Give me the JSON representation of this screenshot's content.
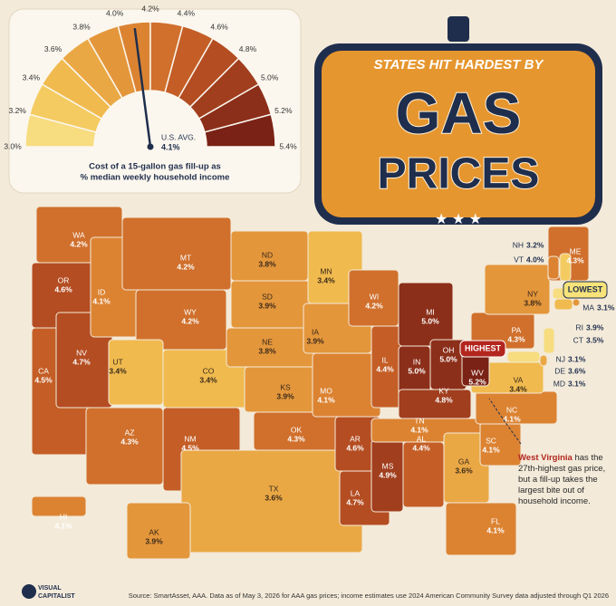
{
  "gauge": {
    "ticks": [
      {
        "value": 3.0,
        "label": "3.0%"
      },
      {
        "value": 3.2,
        "label": "3.2%"
      },
      {
        "value": 3.4,
        "label": "3.4%"
      },
      {
        "value": 3.6,
        "label": "3.6%"
      },
      {
        "value": 3.8,
        "label": "3.8%"
      },
      {
        "value": 4.0,
        "label": "4.0%"
      },
      {
        "value": 4.2,
        "label": "4.2%"
      },
      {
        "value": 4.4,
        "label": "4.4%"
      },
      {
        "value": 4.6,
        "label": "4.6%"
      },
      {
        "value": 4.8,
        "label": "4.8%"
      },
      {
        "value": 5.0,
        "label": "5.0%"
      },
      {
        "value": 5.2,
        "label": "5.2%"
      },
      {
        "value": 5.4,
        "label": "5.4%"
      }
    ],
    "colors": [
      "#f7dc80",
      "#f4cb60",
      "#f0ba4e",
      "#eaa845",
      "#e4963b",
      "#dc8332",
      "#d0702c",
      "#c45e26",
      "#b44d22",
      "#a03e1e",
      "#8c2f1a",
      "#7a2215"
    ],
    "caption": [
      "Cost of a 15-gallon gas fill-up as",
      "% median weekly household income"
    ],
    "avg_label": "U.S. AVG.",
    "avg": {
      "value": 4.1,
      "label": "4.1%"
    }
  },
  "title": {
    "kicker": "STATES HIT HARDEST BY",
    "line1": "GAS",
    "line2": "PRICES"
  },
  "states": {
    "codes": [
      "WA",
      "OR",
      "CA",
      "NV",
      "ID",
      "MT",
      "WY",
      "UT",
      "CO",
      "AZ",
      "NM",
      "ND",
      "SD",
      "NE",
      "KS",
      "OK",
      "TX",
      "MN",
      "IA",
      "MO",
      "AR",
      "LA",
      "WI",
      "IL",
      "MS",
      "MI",
      "IN",
      "OH",
      "KY",
      "TN",
      "AL",
      "GA",
      "FL",
      "SC",
      "NC",
      "VA",
      "WV",
      "PA",
      "NY",
      "ME",
      "NH",
      "VT",
      "MA",
      "RI",
      "CT",
      "NJ",
      "DE",
      "MD",
      "AK",
      "HI"
    ],
    "values": [
      4.2,
      4.6,
      4.5,
      4.7,
      4.1,
      4.2,
      4.2,
      3.4,
      3.4,
      4.3,
      4.5,
      3.8,
      3.9,
      3.8,
      3.9,
      4.3,
      3.6,
      3.4,
      3.9,
      4.1,
      4.6,
      4.7,
      4.2,
      4.4,
      4.9,
      5.0,
      5.0,
      5.0,
      4.8,
      4.1,
      4.4,
      3.6,
      4.1,
      4.1,
      4.1,
      3.4,
      5.2,
      4.3,
      3.8,
      4.3,
      3.2,
      4.0,
      3.1,
      3.9,
      3.5,
      3.1,
      3.6,
      3.1,
      3.9,
      4.1
    ],
    "value_labels": [
      "4.2%",
      "4.6%",
      "4.5%",
      "4.7%",
      "4.1%",
      "4.2%",
      "4.2%",
      "3.4%",
      "3.4%",
      "4.3%",
      "4.5%",
      "3.8%",
      "3.9%",
      "3.8%",
      "3.9%",
      "4.3%",
      "3.6%",
      "3.4%",
      "3.9%",
      "4.1%",
      "4.6%",
      "4.7%",
      "4.2%",
      "4.4%",
      "4.9%",
      "5.0%",
      "5.0%",
      "5.0%",
      "4.8%",
      "4.1%",
      "4.4%",
      "3.6%",
      "4.1%",
      "4.1%",
      "4.1%",
      "3.4%",
      "5.2%",
      "4.3%",
      "3.8%",
      "4.3%",
      "3.2%",
      "4.0%",
      "3.1%",
      "3.9%",
      "3.5%",
      "3.1%",
      "3.6%",
      "3.1%",
      "3.9%",
      "4.1%"
    ]
  },
  "callouts": {
    "lowest": "LOWEST",
    "highest": "HIGHEST"
  },
  "note": {
    "highlight": "West Virginia",
    "text": "has the 27th-highest gas price, but a fill-up takes the largest bite out of household income."
  },
  "source": "Source: SmartAsset, AAA. Data as of May 3, 2026 for AAA gas prices; income estimates use 2024 American Community Survey data adjusted through Q1 2026",
  "logo": [
    "VISUAL",
    "CAPITALIST"
  ]
}
